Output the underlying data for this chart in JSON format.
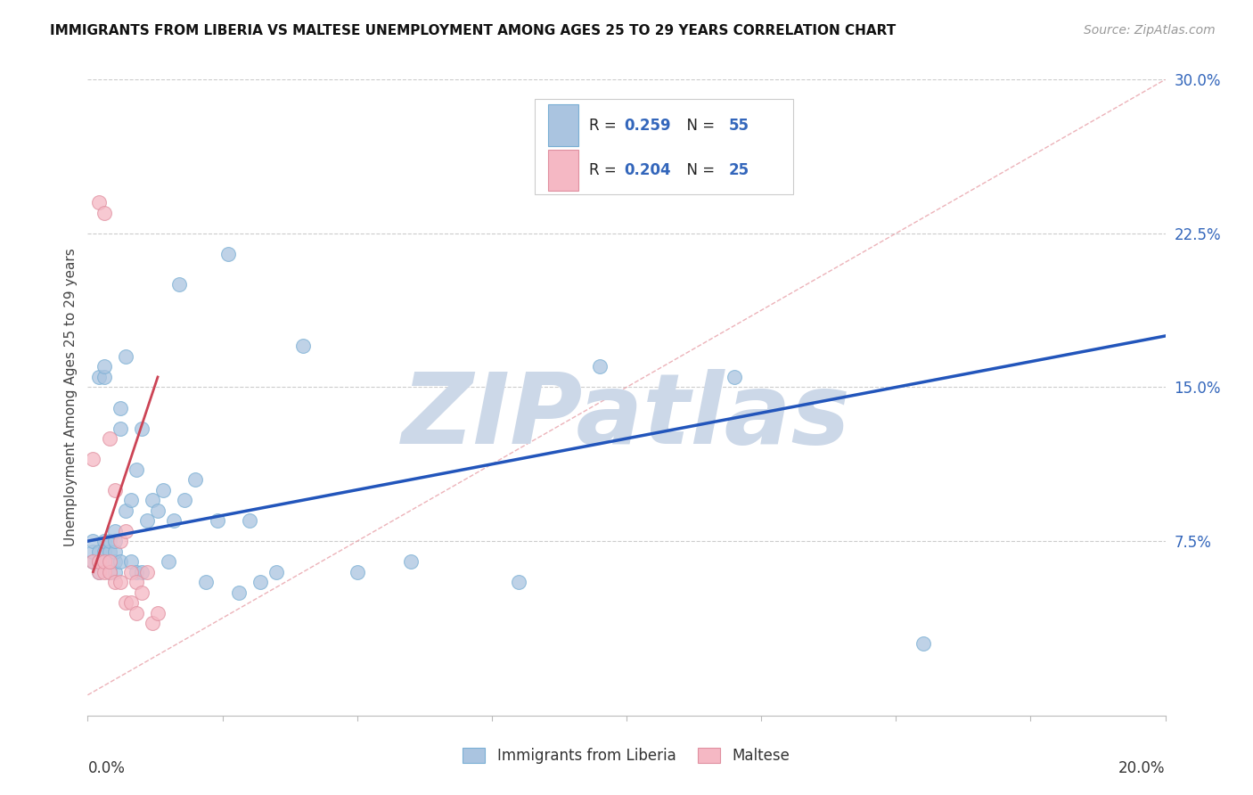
{
  "title": "IMMIGRANTS FROM LIBERIA VS MALTESE UNEMPLOYMENT AMONG AGES 25 TO 29 YEARS CORRELATION CHART",
  "source": "Source: ZipAtlas.com",
  "ylabel": "Unemployment Among Ages 25 to 29 years",
  "ytick_labels": [
    "7.5%",
    "15.0%",
    "22.5%",
    "30.0%"
  ],
  "ytick_values": [
    0.075,
    0.15,
    0.225,
    0.3
  ],
  "xlim": [
    0,
    0.2
  ],
  "ylim": [
    -0.01,
    0.3
  ],
  "color_blue": "#aac4e0",
  "color_blue_edge": "#7aafd4",
  "color_blue_line": "#2255bb",
  "color_pink": "#f5b8c4",
  "color_pink_edge": "#e090a0",
  "color_pink_line": "#cc4455",
  "color_diag": "#e8a0a8",
  "watermark_color": "#ccd8e8",
  "blue_scatter_x": [
    0.001,
    0.001,
    0.001,
    0.002,
    0.002,
    0.002,
    0.002,
    0.003,
    0.003,
    0.003,
    0.003,
    0.003,
    0.004,
    0.004,
    0.004,
    0.004,
    0.005,
    0.005,
    0.005,
    0.005,
    0.005,
    0.006,
    0.006,
    0.006,
    0.007,
    0.007,
    0.008,
    0.008,
    0.009,
    0.009,
    0.01,
    0.01,
    0.011,
    0.012,
    0.013,
    0.014,
    0.015,
    0.016,
    0.017,
    0.018,
    0.02,
    0.022,
    0.024,
    0.026,
    0.028,
    0.03,
    0.032,
    0.035,
    0.04,
    0.05,
    0.06,
    0.08,
    0.095,
    0.12,
    0.155
  ],
  "blue_scatter_y": [
    0.065,
    0.07,
    0.075,
    0.06,
    0.065,
    0.07,
    0.155,
    0.065,
    0.07,
    0.075,
    0.155,
    0.16,
    0.06,
    0.065,
    0.07,
    0.075,
    0.06,
    0.065,
    0.07,
    0.075,
    0.08,
    0.065,
    0.13,
    0.14,
    0.09,
    0.165,
    0.065,
    0.095,
    0.06,
    0.11,
    0.06,
    0.13,
    0.085,
    0.095,
    0.09,
    0.1,
    0.065,
    0.085,
    0.2,
    0.095,
    0.105,
    0.055,
    0.085,
    0.215,
    0.05,
    0.085,
    0.055,
    0.06,
    0.17,
    0.06,
    0.065,
    0.055,
    0.16,
    0.155,
    0.025
  ],
  "pink_scatter_x": [
    0.001,
    0.001,
    0.002,
    0.002,
    0.002,
    0.003,
    0.003,
    0.003,
    0.004,
    0.004,
    0.004,
    0.005,
    0.005,
    0.006,
    0.006,
    0.007,
    0.007,
    0.008,
    0.008,
    0.009,
    0.009,
    0.01,
    0.011,
    0.012,
    0.013
  ],
  "pink_scatter_y": [
    0.065,
    0.115,
    0.06,
    0.065,
    0.24,
    0.06,
    0.065,
    0.235,
    0.06,
    0.065,
    0.125,
    0.055,
    0.1,
    0.055,
    0.075,
    0.045,
    0.08,
    0.045,
    0.06,
    0.04,
    0.055,
    0.05,
    0.06,
    0.035,
    0.04
  ],
  "blue_line_x": [
    0.0,
    0.2
  ],
  "blue_line_y": [
    0.075,
    0.175
  ],
  "pink_line_x": [
    0.001,
    0.013
  ],
  "pink_line_y": [
    0.06,
    0.155
  ],
  "diag_line_x": [
    0.0,
    0.2
  ],
  "diag_line_y": [
    0.0,
    0.3
  ],
  "legend_items": [
    {
      "color": "#aac4e0",
      "edge": "#7aafd4",
      "r": "0.259",
      "n": "55"
    },
    {
      "color": "#f5b8c4",
      "edge": "#e090a0",
      "r": "0.204",
      "n": "25"
    }
  ],
  "bottom_legend": [
    "Immigrants from Liberia",
    "Maltese"
  ]
}
